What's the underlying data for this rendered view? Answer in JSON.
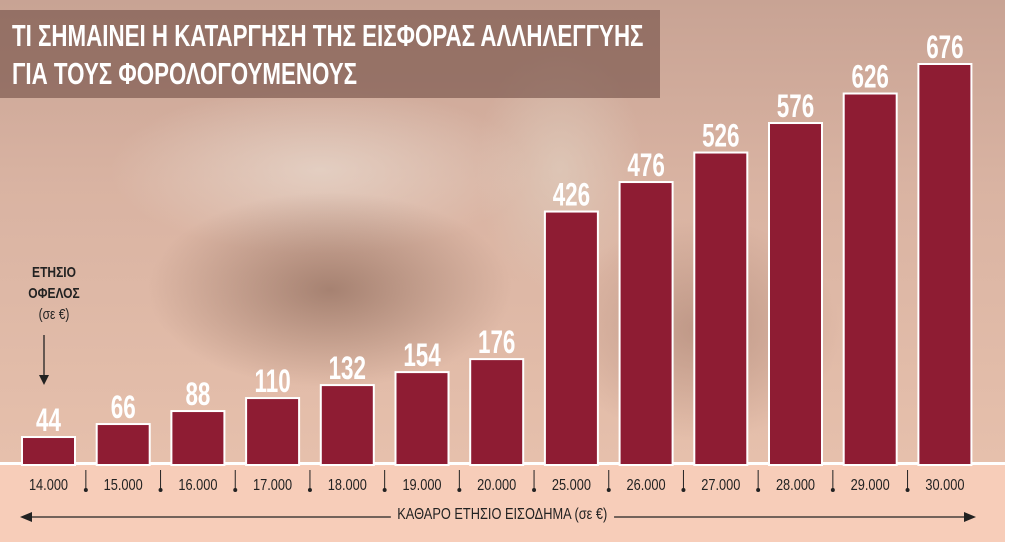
{
  "chart_data": {
    "type": "bar",
    "title": "ΤΙ ΣΗΜΑΙΝΕΙ Η ΚΑΤΑΡΓΗΣΗ ΤΗΣ ΕΙΣΦΟΡΑΣ ΑΛΛΗΛΕΓΓΥΗΣ",
    "subtitle": "ΓΙΑ ΤΟΥΣ ΦΟΡΟΛΟΓΟΥΜΕΝΟΥΣ",
    "ylabel": {
      "line1": "ΕΤΗΣΙΟ",
      "line2": "ΟΦΕΛΟΣ",
      "line3": "(σε €)"
    },
    "xlabel": "ΚΑΘΑΡΟ ΕΤΗΣΙΟ ΕΙΣΟΔΗΜΑ (σε €)",
    "categories": [
      "14.000",
      "15.000",
      "16.000",
      "17.000",
      "18.000",
      "19.000",
      "20.000",
      "25.000",
      "26.000",
      "27.000",
      "28.000",
      "29.000",
      "30.000"
    ],
    "values": [
      44,
      66,
      88,
      110,
      132,
      154,
      176,
      426,
      476,
      526,
      576,
      626,
      676
    ],
    "ylim": [
      0,
      676
    ],
    "grid": false,
    "bar_color": "#8e1c33",
    "bar_border_color": "#ffffff",
    "label_color": "#ffffff"
  }
}
